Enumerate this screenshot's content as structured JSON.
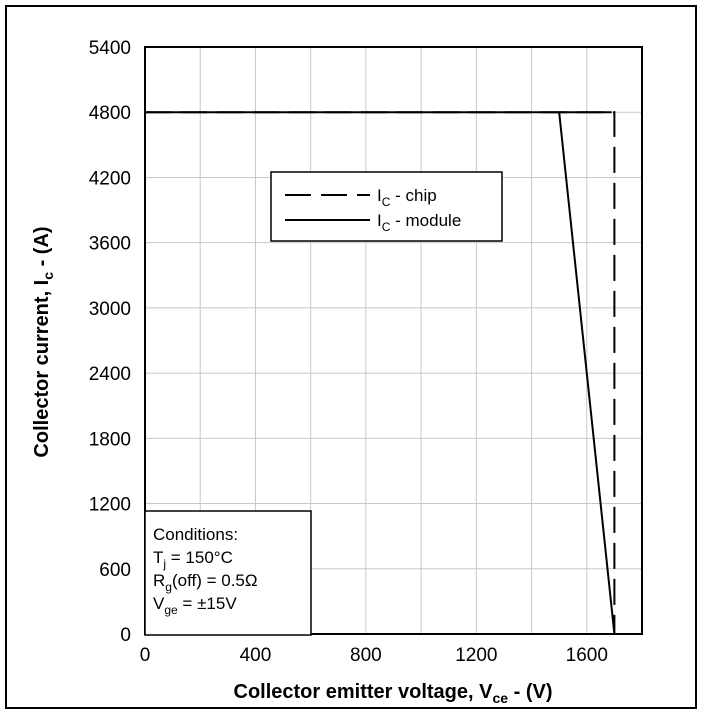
{
  "chart_data": {
    "type": "line",
    "xlabel": {
      "main": "Collector emitter voltage, V",
      "sub": "ce",
      "unit": " - (V)"
    },
    "ylabel": {
      "main": "Collector current, I",
      "sub": "c",
      "unit": " - (A)"
    },
    "xlim": [
      0,
      1800
    ],
    "ylim": [
      0,
      5400
    ],
    "xticks": [
      0,
      400,
      800,
      1200,
      1600
    ],
    "xtick_labels": [
      "0",
      "400",
      "800",
      "1200",
      "1600"
    ],
    "xgrid": [
      0,
      200,
      400,
      600,
      800,
      1000,
      1200,
      1400,
      1600,
      1800
    ],
    "yticks": [
      0,
      600,
      1200,
      1800,
      2400,
      3000,
      3600,
      4200,
      4800,
      5400
    ],
    "ytick_labels": [
      "0",
      "600",
      "1200",
      "1800",
      "2400",
      "3000",
      "3600",
      "4200",
      "4800",
      "5400"
    ],
    "grid": true,
    "legend_position": "upper-center",
    "series": [
      {
        "name": "chip",
        "legend": {
          "main": "I",
          "sub": "C",
          "rest": " - chip"
        },
        "style": "dashed",
        "x": [
          0,
          1700,
          1700
        ],
        "y": [
          4800,
          4800,
          0
        ]
      },
      {
        "name": "module",
        "legend": {
          "main": "I",
          "sub": "C",
          "rest": " - module"
        },
        "style": "solid",
        "x": [
          0,
          1690,
          1500,
          1700
        ],
        "y": [
          4800,
          4800,
          4800,
          0
        ]
      }
    ],
    "annotation": {
      "title": "Conditions:",
      "lines": [
        {
          "main": "T",
          "sub": "j",
          "rest": " = 150°C"
        },
        {
          "main": "R",
          "sub": "g",
          "rest": "(off) = 0.5Ω"
        },
        {
          "main": "V",
          "sub": "ge",
          "rest": " = ±15V"
        }
      ]
    },
    "colors": {
      "line": "#000000",
      "grid": "#c8c8c8"
    }
  }
}
